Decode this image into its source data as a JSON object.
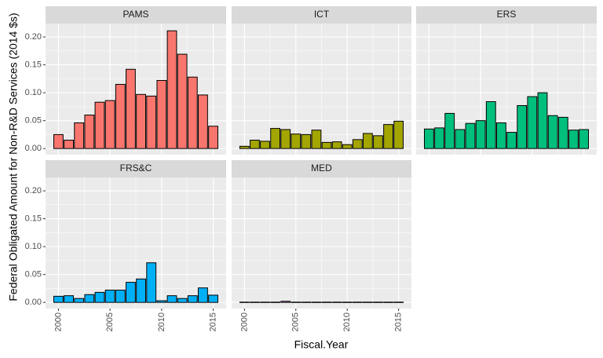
{
  "chart_data": {
    "type": "bar",
    "xlabel": "Fiscal.Year",
    "ylabel": "Federal Obligated Amount for Non-R&D Services (2014 $s)",
    "x": [
      2000,
      2001,
      2002,
      2003,
      2004,
      2005,
      2006,
      2007,
      2008,
      2009,
      2010,
      2011,
      2012,
      2013,
      2014,
      2015
    ],
    "xlim": [
      1998.75,
      2016.25
    ],
    "xticks": [
      2000,
      2005,
      2010,
      2015
    ],
    "ylim": [
      -0.011,
      0.224
    ],
    "yticks": [
      {
        "value": 0,
        "label": "0.00"
      },
      0.05,
      {
        "value": 0.1,
        "label": "0.10"
      },
      0.15,
      {
        "value": 0.2,
        "label": "0.20"
      }
    ],
    "grid": true,
    "facets": [
      {
        "title": "PAMS",
        "color": "#F8766D",
        "values": [
          0.025,
          0.015,
          0.046,
          0.06,
          0.083,
          0.086,
          0.115,
          0.142,
          0.097,
          0.094,
          0.122,
          0.211,
          0.169,
          0.128,
          0.096,
          0.04
        ]
      },
      {
        "title": "ICT",
        "color": "#A3A500",
        "values": [
          0.004,
          0.015,
          0.013,
          0.036,
          0.034,
          0.026,
          0.025,
          0.033,
          0.011,
          0.012,
          0.007,
          0.016,
          0.027,
          0.023,
          0.043,
          0.049
        ]
      },
      {
        "title": "ERS",
        "color": "#00BF7D",
        "values": [
          0.035,
          0.037,
          0.063,
          0.034,
          0.045,
          0.05,
          0.084,
          0.046,
          0.029,
          0.077,
          0.093,
          0.1,
          0.059,
          0.056,
          0.033,
          0.034
        ]
      },
      {
        "title": "FRS&C",
        "color": "#00B0F6",
        "values": [
          0.011,
          0.012,
          0.007,
          0.014,
          0.018,
          0.022,
          0.022,
          0.036,
          0.042,
          0.071,
          0.003,
          0.012,
          0.007,
          0.012,
          0.026,
          0.013
        ]
      },
      {
        "title": "MED",
        "color": "#E76BF3",
        "values": [
          0.0005,
          0.0005,
          0.0005,
          0.0005,
          0.002,
          0.0005,
          0.0005,
          0.0005,
          0.0005,
          0.0005,
          0.0005,
          0.0005,
          0.0005,
          0.0005,
          0.0005,
          0.0005
        ]
      }
    ]
  }
}
